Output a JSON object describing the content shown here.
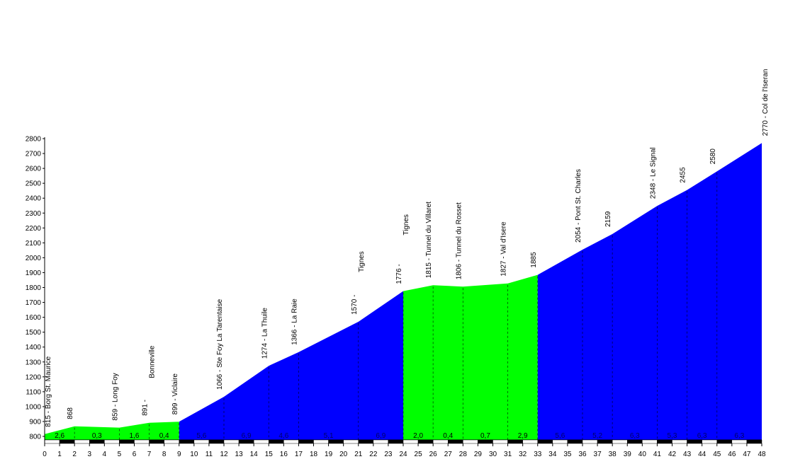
{
  "chart_data": {
    "type": "area",
    "title": "",
    "xlabel": "",
    "ylabel": "",
    "xlim": [
      0,
      48
    ],
    "ylim": [
      750,
      2800
    ],
    "y_ticks": [
      800,
      900,
      1000,
      1100,
      1200,
      1300,
      1400,
      1500,
      1600,
      1700,
      1800,
      1900,
      2000,
      2100,
      2200,
      2300,
      2400,
      2500,
      2600,
      2700,
      2800
    ],
    "x_ticks": [
      0,
      1,
      2,
      3,
      4,
      5,
      6,
      7,
      8,
      9,
      10,
      11,
      12,
      13,
      14,
      15,
      16,
      17,
      18,
      19,
      20,
      21,
      22,
      23,
      24,
      25,
      26,
      27,
      28,
      29,
      30,
      31,
      32,
      33,
      34,
      35,
      36,
      37,
      38,
      39,
      40,
      41,
      42,
      43,
      44,
      45,
      46,
      47,
      48
    ],
    "profile": [
      {
        "x": 0,
        "y": 815
      },
      {
        "x": 2,
        "y": 868
      },
      {
        "x": 5,
        "y": 859
      },
      {
        "x": 7,
        "y": 891
      },
      {
        "x": 9,
        "y": 899
      },
      {
        "x": 12,
        "y": 1066
      },
      {
        "x": 15,
        "y": 1274
      },
      {
        "x": 17,
        "y": 1366
      },
      {
        "x": 21,
        "y": 1570
      },
      {
        "x": 24,
        "y": 1776
      },
      {
        "x": 26,
        "y": 1815
      },
      {
        "x": 28,
        "y": 1806
      },
      {
        "x": 31,
        "y": 1827
      },
      {
        "x": 33,
        "y": 1885
      },
      {
        "x": 36,
        "y": 2054
      },
      {
        "x": 38,
        "y": 2159
      },
      {
        "x": 41,
        "y": 2348
      },
      {
        "x": 43,
        "y": 2455
      },
      {
        "x": 45,
        "y": 2580
      },
      {
        "x": 48,
        "y": 2770
      }
    ],
    "segments": [
      {
        "x0": 0,
        "x1": 9,
        "color": "#00ff00",
        "gradients": [
          {
            "x": 1,
            "label": "2,6"
          },
          {
            "x": 3.5,
            "label": "0,3"
          },
          {
            "x": 6,
            "label": "1,6"
          },
          {
            "x": 8,
            "label": "0,4"
          }
        ]
      },
      {
        "x0": 9,
        "x1": 24,
        "color": "#0000ff",
        "gradients": [
          {
            "x": 10.5,
            "label": "5,6"
          },
          {
            "x": 13.5,
            "label": "6,9"
          },
          {
            "x": 16,
            "label": "4,6"
          },
          {
            "x": 19,
            "label": "5,1"
          },
          {
            "x": 22.5,
            "label": "6,9"
          }
        ]
      },
      {
        "x0": 24,
        "x1": 33,
        "color": "#00ff00",
        "gradients": [
          {
            "x": 25,
            "label": "2,0"
          },
          {
            "x": 27,
            "label": "0,4"
          },
          {
            "x": 29.5,
            "label": "0,7"
          },
          {
            "x": 32,
            "label": "2,9"
          }
        ]
      },
      {
        "x0": 33,
        "x1": 48,
        "color": "#0000ff",
        "gradients": [
          {
            "x": 34.5,
            "label": "5,6"
          },
          {
            "x": 37,
            "label": "5,2"
          },
          {
            "x": 39.5,
            "label": "6,3"
          },
          {
            "x": 42,
            "label": "5,3"
          },
          {
            "x": 44,
            "label": "6,3"
          },
          {
            "x": 46.5,
            "label": "6,3"
          }
        ]
      }
    ],
    "waypoints": [
      {
        "x": 0,
        "y": 815,
        "label": "815 - Borg St. Maurice"
      },
      {
        "x": 2,
        "y": 868,
        "label": "868"
      },
      {
        "x": 5,
        "y": 859,
        "label": "859 - Long Foy"
      },
      {
        "x": 7,
        "y": 891,
        "label": "891 -"
      },
      {
        "x": 7,
        "y": 891,
        "label": "Bonneville",
        "line": 2
      },
      {
        "x": 9,
        "y": 899,
        "label": "899 - Viclaire"
      },
      {
        "x": 12,
        "y": 1066,
        "label": "1066 - Ste Foy La Tarentaise"
      },
      {
        "x": 15,
        "y": 1274,
        "label": "1274 - La Thuile"
      },
      {
        "x": 17,
        "y": 1366,
        "label": "1366 - La Raie"
      },
      {
        "x": 21,
        "y": 1570,
        "label": "1570 -"
      },
      {
        "x": 21,
        "y": 1570,
        "label": "Tignes",
        "line": 2
      },
      {
        "x": 24,
        "y": 1776,
        "label": "1776 -"
      },
      {
        "x": 24,
        "y": 1776,
        "label": "Tignes",
        "line": 2
      },
      {
        "x": 26,
        "y": 1815,
        "label": "1815 - Tunnel du Villaret"
      },
      {
        "x": 28,
        "y": 1806,
        "label": "1806 - Tunnel du Rosset"
      },
      {
        "x": 31,
        "y": 1827,
        "label": "1827 - Val d'Isere"
      },
      {
        "x": 33,
        "y": 1885,
        "label": "1885"
      },
      {
        "x": 36,
        "y": 2054,
        "label": "2054 - Pont St. Charles"
      },
      {
        "x": 38,
        "y": 2159,
        "label": "2159"
      },
      {
        "x": 41,
        "y": 2348,
        "label": "2348 - Le Signal"
      },
      {
        "x": 43,
        "y": 2455,
        "label": "2455"
      },
      {
        "x": 45,
        "y": 2580,
        "label": "2580"
      },
      {
        "x": 48,
        "y": 2770,
        "label": "2770 - Col de l'Iseran"
      }
    ],
    "grid": false,
    "legend": "none"
  }
}
